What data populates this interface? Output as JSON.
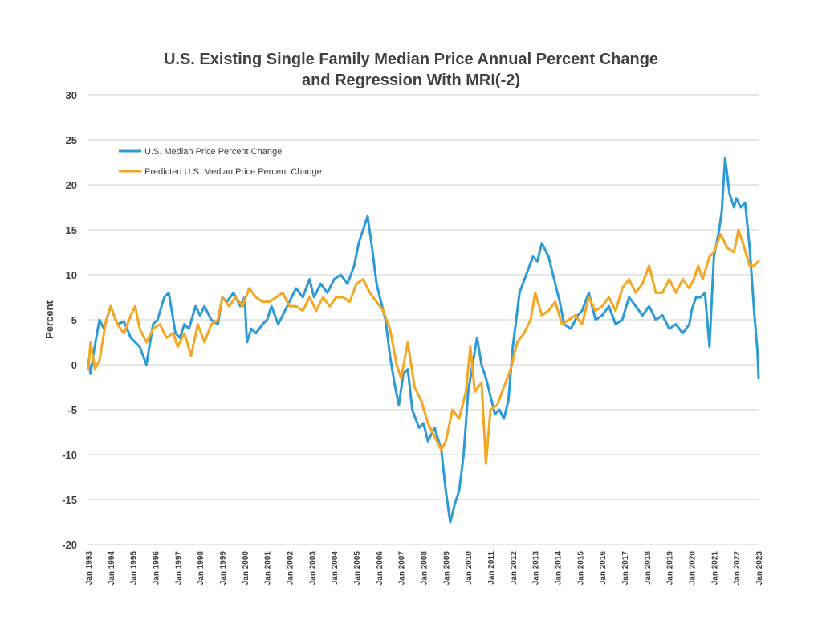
{
  "chart_data": {
    "type": "line",
    "title": [
      "U.S. Existing Single Family Median Price Annual Percent Change",
      "and Regression With MRI(-2)"
    ],
    "xlabel": "",
    "ylabel": "Percent",
    "ylim": [
      -20,
      30
    ],
    "yticks": [
      30,
      25,
      20,
      15,
      10,
      5,
      0,
      -5,
      -10,
      -15,
      -20
    ],
    "grid": true,
    "legend_position": "top-left",
    "x_start": 1993,
    "x_end": 2023,
    "categories": [
      "Jan 1993",
      "Jan 1994",
      "Jan 1995",
      "Jan 1996",
      "Jan 1997",
      "Jan 1998",
      "Jan 1999",
      "Jan 2000",
      "Jan 2001",
      "Jan 2002",
      "Jan 2003",
      "Jan 2004",
      "Jan 2005",
      "Jan 2006",
      "Jan 2007",
      "Jan 2008",
      "Jan 2009",
      "Jan 2010",
      "Jan 2011",
      "Jan 2012",
      "Jan 2013",
      "Jan 2014",
      "Jan 2015",
      "Jan 2016",
      "Jan 2017",
      "Jan 2018",
      "Jan 2019",
      "Jan 2020",
      "Jan 2021",
      "Jan 2022",
      "Jan 2023"
    ],
    "series": [
      {
        "name": "U.S. Median Price Percent Change",
        "color": "#2e9bd6",
        "x": [
          1993.0,
          1993.1,
          1993.25,
          1993.5,
          1993.7,
          1994.0,
          1994.3,
          1994.6,
          1994.9,
          1995.1,
          1995.3,
          1995.6,
          1995.9,
          1996.1,
          1996.4,
          1996.6,
          1996.9,
          1997.1,
          1997.3,
          1997.5,
          1997.8,
          1998.0,
          1998.2,
          1998.5,
          1998.8,
          1999.0,
          1999.2,
          1999.5,
          1999.8,
          2000.0,
          2000.1,
          2000.3,
          2000.5,
          2000.8,
          2001.0,
          2001.2,
          2001.5,
          2001.8,
          2002.0,
          2002.3,
          2002.6,
          2002.9,
          2003.1,
          2003.4,
          2003.7,
          2004.0,
          2004.3,
          2004.6,
          2004.9,
          2005.1,
          2005.3,
          2005.5,
          2005.7,
          2005.9,
          2006.1,
          2006.3,
          2006.5,
          2006.7,
          2006.9,
          2007.1,
          2007.3,
          2007.5,
          2007.8,
          2008.0,
          2008.2,
          2008.5,
          2008.8,
          2009.0,
          2009.2,
          2009.4,
          2009.6,
          2009.8,
          2010.0,
          2010.2,
          2010.4,
          2010.6,
          2010.8,
          2011.0,
          2011.2,
          2011.4,
          2011.6,
          2011.8,
          2012.0,
          2012.3,
          2012.6,
          2012.9,
          2013.1,
          2013.3,
          2013.6,
          2013.9,
          2014.1,
          2014.3,
          2014.6,
          2014.9,
          2015.1,
          2015.4,
          2015.7,
          2016.0,
          2016.3,
          2016.6,
          2016.9,
          2017.2,
          2017.5,
          2017.8,
          2018.1,
          2018.4,
          2018.7,
          2019.0,
          2019.3,
          2019.6,
          2019.9,
          2020.0,
          2020.2,
          2020.4,
          2020.6,
          2020.8,
          2021.0,
          2021.2,
          2021.35,
          2021.5,
          2021.7,
          2021.9,
          2022.0,
          2022.2,
          2022.4,
          2022.6,
          2022.8,
          2022.95,
          2023.0
        ],
        "values": [
          0.5,
          -1.0,
          1.5,
          5.0,
          4.0,
          6.5,
          4.5,
          4.8,
          3.0,
          2.5,
          2.0,
          0.0,
          4.5,
          5.0,
          7.5,
          8.0,
          3.5,
          3.0,
          4.5,
          4.0,
          6.5,
          5.5,
          6.5,
          5.0,
          4.5,
          7.5,
          7.0,
          8.0,
          6.5,
          7.5,
          2.5,
          4.0,
          3.5,
          4.5,
          5.0,
          6.5,
          4.5,
          6.0,
          7.0,
          8.5,
          7.5,
          9.5,
          7.5,
          9.0,
          8.0,
          9.5,
          10.0,
          9.0,
          11.0,
          13.5,
          15.0,
          16.5,
          13.0,
          9.0,
          7.0,
          5.0,
          1.0,
          -2.0,
          -4.5,
          -1.0,
          -0.5,
          -5.0,
          -7.0,
          -6.5,
          -8.5,
          -7.0,
          -9.5,
          -14.0,
          -17.5,
          -15.5,
          -14.0,
          -10.0,
          -3.0,
          0.0,
          3.0,
          0.0,
          -1.5,
          -3.5,
          -5.5,
          -5.0,
          -6.0,
          -4.0,
          2.0,
          8.0,
          10.0,
          12.0,
          11.5,
          13.5,
          12.0,
          9.0,
          7.0,
          4.5,
          4.0,
          5.5,
          6.0,
          8.0,
          5.0,
          5.5,
          6.5,
          4.5,
          5.0,
          7.5,
          6.5,
          5.5,
          6.5,
          5.0,
          5.5,
          4.0,
          4.5,
          3.5,
          4.5,
          6.0,
          7.5,
          7.5,
          8.0,
          2.0,
          12.0,
          14.5,
          17.0,
          23.0,
          19.0,
          17.5,
          18.5,
          17.5,
          18.0,
          13.0,
          6.0,
          1.5,
          -1.5
        ]
      },
      {
        "name": "Predicted U.S. Median Price Percent Change",
        "color": "#f5a623",
        "x": [
          1993.0,
          1993.1,
          1993.3,
          1993.5,
          1993.8,
          1994.0,
          1994.3,
          1994.6,
          1994.9,
          1995.1,
          1995.3,
          1995.6,
          1995.9,
          1996.2,
          1996.5,
          1996.8,
          1997.0,
          1997.3,
          1997.6,
          1997.9,
          1998.2,
          1998.5,
          1998.8,
          1999.0,
          1999.3,
          1999.6,
          1999.9,
          2000.2,
          2000.5,
          2000.8,
          2001.1,
          2001.4,
          2001.7,
          2002.0,
          2002.3,
          2002.6,
          2002.9,
          2003.2,
          2003.5,
          2003.8,
          2004.1,
          2004.4,
          2004.7,
          2005.0,
          2005.3,
          2005.6,
          2005.9,
          2006.2,
          2006.5,
          2006.8,
          2007.0,
          2007.3,
          2007.6,
          2007.9,
          2008.2,
          2008.5,
          2008.8,
          2009.0,
          2009.3,
          2009.6,
          2009.9,
          2010.1,
          2010.3,
          2010.6,
          2010.8,
          2011.0,
          2011.3,
          2011.6,
          2011.9,
          2012.2,
          2012.5,
          2012.8,
          2013.0,
          2013.3,
          2013.6,
          2013.9,
          2014.2,
          2014.5,
          2014.8,
          2015.1,
          2015.4,
          2015.7,
          2016.0,
          2016.3,
          2016.6,
          2016.9,
          2017.2,
          2017.5,
          2017.8,
          2018.1,
          2018.4,
          2018.7,
          2019.0,
          2019.3,
          2019.6,
          2019.9,
          2020.1,
          2020.3,
          2020.5,
          2020.8,
          2021.0,
          2021.3,
          2021.6,
          2021.9,
          2022.1,
          2022.3,
          2022.6,
          2022.8,
          2023.0
        ],
        "values": [
          -0.5,
          2.5,
          -0.5,
          0.5,
          5.0,
          6.5,
          4.5,
          3.5,
          5.5,
          6.5,
          4.0,
          2.5,
          4.0,
          4.5,
          3.0,
          3.5,
          2.0,
          3.5,
          1.0,
          4.5,
          2.5,
          4.5,
          5.0,
          7.5,
          6.5,
          7.5,
          6.5,
          8.5,
          7.5,
          7.0,
          7.0,
          7.5,
          8.0,
          6.5,
          6.5,
          6.0,
          7.5,
          6.0,
          7.5,
          6.5,
          7.5,
          7.5,
          7.0,
          9.0,
          9.5,
          8.0,
          7.0,
          6.0,
          4.0,
          0.0,
          -1.5,
          2.5,
          -2.5,
          -4.0,
          -6.5,
          -8.0,
          -9.5,
          -8.5,
          -5.0,
          -6.0,
          -3.0,
          2.0,
          -3.0,
          -2.0,
          -11.0,
          -5.0,
          -4.5,
          -2.5,
          -0.5,
          2.5,
          3.5,
          5.0,
          8.0,
          5.5,
          6.0,
          7.0,
          4.5,
          5.0,
          5.5,
          4.5,
          7.5,
          6.0,
          6.5,
          7.5,
          6.0,
          8.5,
          9.5,
          8.0,
          9.0,
          11.0,
          8.0,
          8.0,
          9.5,
          8.0,
          9.5,
          8.5,
          9.5,
          11.0,
          9.5,
          12.0,
          12.5,
          14.5,
          13.0,
          12.5,
          15.0,
          13.5,
          11.0,
          11.0,
          11.5
        ]
      }
    ]
  }
}
